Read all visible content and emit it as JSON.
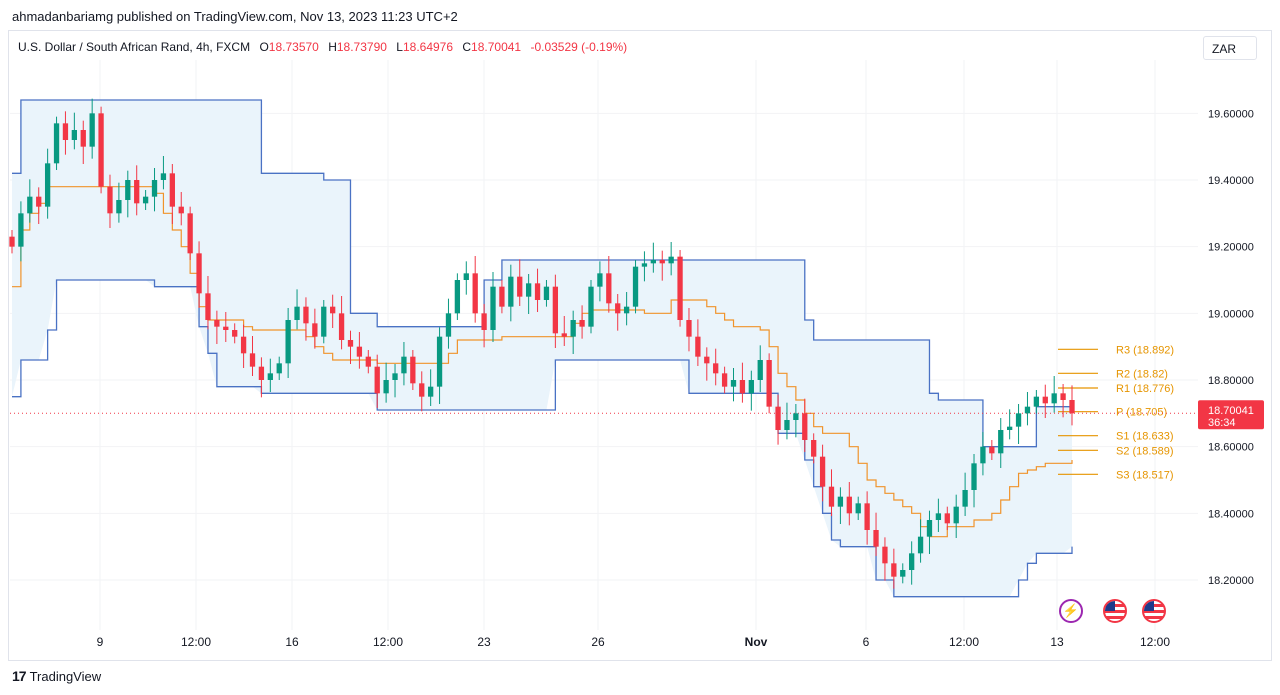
{
  "publisher": "ahmadanbariamg published on TradingView.com, Nov 13, 2023 11:23 UTC+2",
  "legend": {
    "symbol": "U.S. Dollar / South African Rand, 4h, FXCM",
    "o_label": "O",
    "o_value": "18.73570",
    "h_label": "H",
    "h_value": "18.73790",
    "l_label": "L",
    "l_value": "18.64976",
    "c_label": "C",
    "c_value": "18.70041",
    "change": "-0.03529 (-0.19%)"
  },
  "currency_button": "ZAR",
  "footer_brand": "TradingView",
  "footer_logo": "17",
  "colors": {
    "up": "#089981",
    "down": "#f23645",
    "channel": "#4a72c4",
    "channel_fill": "#eaf4fb",
    "midline": "#f0932b",
    "pivot_text": "#e69500",
    "price_tag": "#f23645",
    "grid": "#f2f3f5"
  },
  "chart_data": {
    "type": "candlestick",
    "price_axis_ticks": [
      "19.60000",
      "19.40000",
      "19.20000",
      "19.00000",
      "18.80000",
      "18.60000",
      "18.40000",
      "18.20000"
    ],
    "price_axis_values": [
      19.6,
      19.4,
      19.2,
      19.0,
      18.8,
      18.6,
      18.4,
      18.2
    ],
    "ylim": [
      18.05,
      19.76
    ],
    "time_axis_ticks": [
      "9",
      "12:00",
      "16",
      "12:00",
      "23",
      "26",
      "Nov",
      "6",
      "12:00",
      "13",
      "12:00"
    ],
    "current_price": "18.70041",
    "countdown": "36:34",
    "pivots": [
      {
        "label": "R3 (18.892)",
        "value": 18.892
      },
      {
        "label": "R2 (18.82)",
        "value": 18.82
      },
      {
        "label": "R1 (18.776)",
        "value": 18.776
      },
      {
        "label": "P (18.705)",
        "value": 18.705
      },
      {
        "label": "S1 (18.633)",
        "value": 18.633
      },
      {
        "label": "S2 (18.589)",
        "value": 18.589
      },
      {
        "label": "S3 (18.517)",
        "value": 18.517
      }
    ],
    "closes": [
      19.2,
      19.3,
      19.35,
      19.32,
      19.45,
      19.57,
      19.52,
      19.55,
      19.5,
      19.6,
      19.38,
      19.3,
      19.34,
      19.4,
      19.33,
      19.35,
      19.4,
      19.42,
      19.32,
      19.3,
      19.18,
      19.06,
      18.98,
      18.96,
      18.95,
      18.93,
      18.88,
      18.84,
      18.8,
      18.82,
      18.85,
      18.98,
      19.02,
      18.97,
      18.93,
      19.02,
      19.0,
      18.92,
      18.9,
      18.87,
      18.84,
      18.76,
      18.8,
      18.82,
      18.87,
      18.79,
      18.75,
      18.78,
      18.93,
      19.0,
      19.1,
      19.12,
      19.0,
      18.95,
      19.08,
      19.02,
      19.11,
      19.05,
      19.09,
      19.04,
      19.08,
      18.94,
      18.93,
      18.98,
      18.96,
      19.08,
      19.12,
      19.03,
      19.0,
      19.02,
      19.14,
      19.15,
      19.16,
      19.15,
      19.17,
      18.98,
      18.93,
      18.87,
      18.85,
      18.82,
      18.78,
      18.8,
      18.76,
      18.8,
      18.86,
      18.72,
      18.65,
      18.68,
      18.7,
      18.62,
      18.57,
      18.48,
      18.42,
      18.45,
      18.4,
      18.43,
      18.35,
      18.3,
      18.25,
      18.21,
      18.23,
      18.28,
      18.33,
      18.38,
      18.4,
      18.37,
      18.42,
      18.47,
      18.55,
      18.6,
      18.58,
      18.65,
      18.66,
      18.7,
      18.72,
      18.75,
      18.73,
      18.76,
      18.74,
      18.7
    ],
    "band_upper": [
      19.42,
      19.64,
      19.64,
      19.64,
      19.64,
      19.64,
      19.64,
      19.64,
      19.64,
      19.64,
      19.64,
      19.64,
      19.64,
      19.64,
      19.64,
      19.64,
      19.64,
      19.64,
      19.64,
      19.64,
      19.64,
      19.64,
      19.64,
      19.64,
      19.64,
      19.64,
      19.64,
      19.64,
      19.42,
      19.42,
      19.42,
      19.42,
      19.42,
      19.42,
      19.42,
      19.4,
      19.4,
      19.4,
      19.0,
      19.0,
      19.0,
      18.96,
      18.96,
      18.96,
      18.96,
      18.96,
      18.96,
      18.96,
      18.96,
      18.96,
      18.96,
      18.96,
      18.96,
      19.1,
      19.1,
      19.16,
      19.16,
      19.16,
      19.16,
      19.16,
      19.16,
      19.16,
      19.16,
      19.16,
      19.16,
      19.16,
      19.16,
      19.16,
      19.16,
      19.16,
      19.16,
      19.16,
      19.16,
      19.16,
      19.16,
      19.16,
      19.16,
      19.16,
      19.16,
      19.16,
      19.16,
      19.16,
      19.16,
      19.16,
      19.16,
      19.16,
      19.16,
      19.16,
      19.16,
      18.98,
      18.92,
      18.92,
      18.92,
      18.92,
      18.92,
      18.92,
      18.92,
      18.92,
      18.92,
      18.92,
      18.92,
      18.92,
      18.92,
      18.76,
      18.74,
      18.74,
      18.74,
      18.74,
      18.74,
      18.6,
      18.6,
      18.6,
      18.6,
      18.6,
      18.6,
      18.72,
      18.72,
      18.72,
      18.72,
      18.72
    ],
    "band_lower": [
      18.75,
      18.86,
      18.86,
      18.86,
      18.95,
      19.1,
      19.1,
      19.1,
      19.1,
      19.1,
      19.1,
      19.1,
      19.1,
      19.1,
      19.1,
      19.1,
      19.08,
      19.08,
      19.08,
      19.08,
      19.08,
      18.96,
      18.88,
      18.78,
      18.78,
      18.78,
      18.78,
      18.78,
      18.76,
      18.76,
      18.76,
      18.76,
      18.76,
      18.76,
      18.76,
      18.76,
      18.76,
      18.76,
      18.76,
      18.76,
      18.76,
      18.71,
      18.71,
      18.71,
      18.71,
      18.71,
      18.71,
      18.71,
      18.71,
      18.71,
      18.71,
      18.71,
      18.71,
      18.71,
      18.71,
      18.71,
      18.71,
      18.71,
      18.71,
      18.71,
      18.71,
      18.86,
      18.86,
      18.86,
      18.86,
      18.86,
      18.86,
      18.86,
      18.86,
      18.86,
      18.86,
      18.86,
      18.86,
      18.86,
      18.86,
      18.86,
      18.76,
      18.76,
      18.76,
      18.76,
      18.76,
      18.76,
      18.76,
      18.76,
      18.76,
      18.76,
      18.64,
      18.64,
      18.64,
      18.56,
      18.48,
      18.4,
      18.32,
      18.3,
      18.3,
      18.3,
      18.3,
      18.2,
      18.2,
      18.15,
      18.15,
      18.15,
      18.15,
      18.15,
      18.15,
      18.15,
      18.15,
      18.15,
      18.15,
      18.15,
      18.15,
      18.15,
      18.15,
      18.2,
      18.25,
      18.28,
      18.28,
      18.28,
      18.28,
      18.3
    ],
    "band_mid": [
      19.08,
      19.25,
      19.3,
      19.33,
      19.38,
      19.38,
      19.38,
      19.38,
      19.38,
      19.38,
      19.38,
      19.38,
      19.38,
      19.38,
      19.38,
      19.38,
      19.36,
      19.3,
      19.25,
      19.2,
      19.12,
      19.02,
      18.98,
      18.98,
      18.98,
      18.98,
      18.96,
      18.95,
      18.95,
      18.95,
      18.95,
      18.95,
      18.95,
      18.93,
      18.9,
      18.88,
      18.86,
      18.86,
      18.86,
      18.86,
      18.86,
      18.85,
      18.85,
      18.85,
      18.85,
      18.85,
      18.85,
      18.85,
      18.85,
      18.88,
      18.92,
      18.92,
      18.92,
      18.92,
      18.92,
      18.93,
      18.93,
      18.93,
      18.93,
      18.93,
      18.93,
      18.93,
      18.93,
      18.97,
      19.0,
      19.01,
      19.01,
      19.01,
      19.01,
      19.01,
      19.01,
      19.0,
      19.0,
      19.0,
      19.04,
      19.04,
      19.04,
      19.04,
      19.02,
      19.0,
      18.98,
      18.96,
      18.96,
      18.96,
      18.95,
      18.9,
      18.82,
      18.78,
      18.74,
      18.7,
      18.66,
      18.64,
      18.64,
      18.64,
      18.6,
      18.55,
      18.5,
      18.48,
      18.46,
      18.44,
      18.42,
      18.4,
      18.36,
      18.33,
      18.33,
      18.36,
      18.36,
      18.36,
      18.38,
      18.38,
      18.4,
      18.44,
      18.48,
      18.52,
      18.53,
      18.54,
      18.55,
      18.55,
      18.55,
      18.56
    ]
  }
}
